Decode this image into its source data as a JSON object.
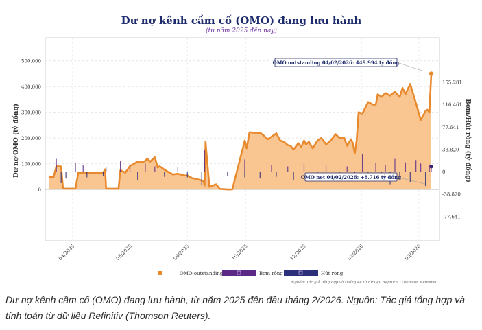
{
  "chart_data": {
    "type": "area",
    "title": "Dư nợ kênh cầm cố (OMO) đang lưu hành",
    "subtitle": "(từ năm 2025 đến nay)",
    "ylabel": "Dư nợ OMO (tỷ đồng)",
    "y2label": "Bơm/Hút ròng (tỷ đồng)",
    "ylim": [
      -200000,
      590000
    ],
    "y2lim": [
      -120000,
      232000
    ],
    "yticks": [
      0,
      100000,
      200000,
      300000,
      400000,
      500000
    ],
    "ytick_labels": [
      "0",
      "100.000",
      "200.000",
      "300.000",
      "400.000",
      "500.000"
    ],
    "y2ticks": [
      -77641,
      -38820,
      0,
      38820,
      77641,
      116461,
      155281
    ],
    "y2tick_labels": [
      "-77.641",
      "-38.820",
      "0",
      "38.820",
      "77.641",
      "116.461",
      "155.281"
    ],
    "xlim": [
      0,
      400
    ],
    "xticks": [
      25,
      85,
      145,
      206,
      267,
      327,
      387
    ],
    "xtick_labels": [
      "04/2025",
      "06/2025",
      "08/2025",
      "10/2025",
      "12/2025",
      "02/2026",
      "03/2026"
    ],
    "grid": true,
    "legend_position": "bottom",
    "series": [
      {
        "name": "OMO outstanding",
        "color": "#E8892E",
        "x": [
          0,
          5,
          8,
          13,
          15,
          17,
          28,
          31,
          57,
          59,
          60,
          71,
          73,
          75,
          80,
          84,
          85,
          88,
          93,
          96,
          101,
          103,
          106,
          111,
          114,
          116,
          121,
          125,
          130,
          135,
          141,
          145,
          150,
          155,
          159,
          162,
          163,
          164,
          168,
          175,
          179,
          187,
          192,
          205,
          207,
          210,
          216,
          221,
          224,
          229,
          233,
          238,
          242,
          246,
          250,
          253,
          256,
          261,
          264,
          267,
          269,
          272,
          276,
          281,
          285,
          290,
          295,
          300,
          304,
          309,
          312,
          316,
          318,
          320,
          322,
          324,
          328,
          334,
          339,
          342,
          344,
          348,
          352,
          357,
          362,
          367,
          370,
          373,
          378,
          384,
          389,
          394,
          396,
          398,
          400
        ],
        "values": [
          50000,
          47000,
          90000,
          89000,
          5000,
          3000,
          3000,
          65000,
          65000,
          78000,
          3000,
          3000,
          2000,
          75000,
          65000,
          85000,
          92000,
          97000,
          108000,
          105000,
          110000,
          120000,
          108000,
          125000,
          85000,
          90000,
          77000,
          68000,
          58000,
          61000,
          55000,
          54000,
          44000,
          40000,
          36000,
          32000,
          15000,
          185000,
          10000,
          20000,
          2000,
          0,
          0,
          190000,
          160000,
          222000,
          220000,
          220000,
          212000,
          195000,
          205000,
          218000,
          190000,
          185000,
          172000,
          170000,
          155000,
          180000,
          165000,
          190000,
          175000,
          185000,
          160000,
          190000,
          200000,
          175000,
          190000,
          215000,
          200000,
          200000,
          170000,
          195000,
          180000,
          140000,
          190000,
          300000,
          295000,
          340000,
          330000,
          330000,
          370000,
          360000,
          375000,
          365000,
          380000,
          360000,
          395000,
          370000,
          410000,
          335000,
          270000,
          305000,
          310000,
          300000,
          449994
        ]
      },
      {
        "name": "Bơm ròng",
        "color": "#5B2A86",
        "x": [
          8,
          28,
          36,
          60,
          75,
          85,
          101,
          111,
          135,
          163,
          205,
          233,
          250,
          267,
          290,
          312,
          328,
          342,
          352,
          362,
          373,
          384,
          389,
          398,
          400
        ],
        "values": [
          22000,
          15000,
          12000,
          8000,
          18000,
          10000,
          14000,
          9000,
          8000,
          38000,
          21000,
          12000,
          9000,
          14000,
          10000,
          9000,
          30000,
          15000,
          12000,
          22000,
          16000,
          20000,
          14000,
          11000,
          8716
        ]
      },
      {
        "name": "Hút ròng",
        "color": "#2C2F7A",
        "x": [
          13,
          18,
          40,
          57,
          93,
          121,
          145,
          160,
          187,
          205,
          221,
          238,
          256,
          281,
          304,
          320,
          334,
          348,
          357,
          367,
          378,
          394
        ],
        "values": [
          -20000,
          -12000,
          -10000,
          -8000,
          -14000,
          -9000,
          -10000,
          -24000,
          -8000,
          -10000,
          -12000,
          -9000,
          -14000,
          -10000,
          -16000,
          -12000,
          -13000,
          -9000,
          -22000,
          -15000,
          -18000,
          -25000
        ]
      }
    ],
    "annotations": [
      "OMO outstanding 04/02/2026: 449.994 tỷ đồng",
      "OMO net 04/02/2026: +8.716 tỷ đồng"
    ],
    "source": "Nguồn: Tác giả tổng hợp và thống kê từ dữ liệu Refinitiv (Thomson Reuters)."
  },
  "legend": {
    "items": [
      {
        "label": "OMO outstanding",
        "color": "#E8892E"
      },
      {
        "label": "Bơm ròng",
        "color": "#5B2A86"
      },
      {
        "label": "Hút ròng",
        "color": "#2C2F7A"
      }
    ]
  },
  "caption": "Dư nợ kênh cầm cố (OMO) đang lưu hành, từ năm 2025 đến đầu tháng 2/2026. Nguồn: Tác giả tổng hợp và tính toán từ dữ liệu Refinitiv (Thomson Reuters)."
}
